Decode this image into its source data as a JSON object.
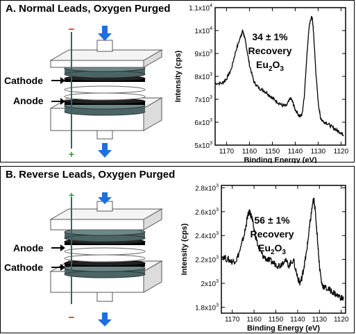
{
  "panels": [
    {
      "title": "A. Normal Leads, Oxygen Purged",
      "diagram": {
        "upper_label": "Cathode",
        "lower_label": "Anode",
        "top_sign": "−",
        "bottom_sign": "+",
        "top_sign_color": "#d03020",
        "bottom_sign_color": "#2e9a2e"
      },
      "annotation": {
        "line1": "34 ± 1%",
        "line2": "Recovery",
        "compound_main": "Eu",
        "compound_sub1": "2",
        "compound_mid": "O",
        "compound_sub2": "3"
      }
    },
    {
      "title": "B. Reverse Leads, Oxygen Purged",
      "diagram": {
        "upper_label": "Anode",
        "lower_label": "Cathode",
        "top_sign": "+",
        "bottom_sign": "−",
        "top_sign_color": "#2e9a2e",
        "bottom_sign_color": "#d03020"
      },
      "annotation": {
        "line1": "56 ± 1%",
        "line2": "Recovery",
        "compound_main": "Eu",
        "compound_sub1": "2",
        "compound_mid": "O",
        "compound_sub2": "3"
      }
    }
  ],
  "colors": {
    "plate_dark": "#4a6565",
    "electrode": "#000000",
    "arrow": "#1f6fe0",
    "housing": "#e8e8e8"
  },
  "icons": {
    "flow_in": "down-arrow-icon",
    "flow_out": "down-arrow-icon",
    "lead_in": "right-arrow-icon"
  },
  "chart_data": [
    {
      "type": "line",
      "xlabel": "Binding Energy (eV)",
      "ylabel": "Intensity (cps)",
      "xlim": [
        1175,
        1118
      ],
      "ylim": [
        5000,
        11000
      ],
      "x_reversed": true,
      "x_ticks": [
        1170,
        1160,
        1150,
        1140,
        1130,
        1120
      ],
      "x_tick_labels": [
        "1170",
        "1160",
        "1150",
        "1140",
        "1130",
        "1120"
      ],
      "y_ticks": [
        5000,
        6000,
        7000,
        8000,
        9000,
        10000,
        11000
      ],
      "y_tick_labels": [
        {
          "m": "5x10",
          "e": "3"
        },
        {
          "m": "6x10",
          "e": "3"
        },
        {
          "m": "7x10",
          "e": "3"
        },
        {
          "m": "8x10",
          "e": "3"
        },
        {
          "m": "9x10",
          "e": "3"
        },
        {
          "m": "1x10",
          "e": "4"
        },
        {
          "m": "1.1x10",
          "e": "4"
        }
      ],
      "series": [
        {
          "x": [
            1175,
            1172,
            1170,
            1168,
            1166,
            1164,
            1163,
            1162.5,
            1161.5,
            1160,
            1158,
            1156,
            1154,
            1152,
            1150,
            1148,
            1146,
            1144,
            1142,
            1141,
            1140,
            1138,
            1137,
            1136,
            1135,
            1134,
            1133,
            1132.5,
            1132,
            1131,
            1130,
            1129,
            1128,
            1126,
            1124,
            1122,
            1120,
            1119
          ],
          "y": [
            7700,
            7700,
            7900,
            8300,
            9100,
            9700,
            9980,
            9850,
            9400,
            8500,
            7750,
            7500,
            7400,
            7250,
            7050,
            6900,
            6750,
            6700,
            7050,
            6850,
            6550,
            6250,
            6350,
            7200,
            8800,
            10100,
            10600,
            10500,
            9900,
            8200,
            6900,
            6200,
            6050,
            5950,
            5800,
            5650,
            5550,
            5450
          ]
        }
      ]
    },
    {
      "type": "line",
      "xlabel": "Binding Energy (eV)",
      "ylabel": "Intensity (cps)",
      "xlim": [
        1175,
        1118
      ],
      "ylim": [
        1750,
        2820
      ],
      "x_reversed": true,
      "x_ticks": [
        1170,
        1160,
        1150,
        1140,
        1130,
        1120
      ],
      "x_tick_labels": [
        "1170",
        "1160",
        "1150",
        "1140",
        "1130",
        "1120"
      ],
      "y_ticks": [
        1800,
        2000,
        2200,
        2400,
        2600,
        2800
      ],
      "y_tick_labels": [
        {
          "m": "1.8x10",
          "e": "3"
        },
        {
          "m": "2x10",
          "e": "3"
        },
        {
          "m": "2.2x10",
          "e": "3"
        },
        {
          "m": "2.4x10",
          "e": "3"
        },
        {
          "m": "2.6x10",
          "e": "3"
        },
        {
          "m": "2.8x10",
          "e": "3"
        }
      ],
      "series": [
        {
          "x": [
            1175,
            1172,
            1170,
            1168,
            1166,
            1164,
            1163,
            1162,
            1161,
            1160,
            1158,
            1156,
            1154,
            1152,
            1150,
            1148,
            1146,
            1144,
            1142,
            1140,
            1139,
            1138,
            1137,
            1136,
            1135,
            1134,
            1133,
            1132.5,
            1132,
            1131,
            1130,
            1129,
            1128,
            1126,
            1124,
            1122,
            1120,
            1119
          ],
          "y": [
            2230,
            2200,
            2180,
            2200,
            2300,
            2450,
            2560,
            2600,
            2550,
            2450,
            2300,
            2230,
            2200,
            2180,
            2160,
            2150,
            2200,
            2150,
            2200,
            2050,
            2000,
            2050,
            2150,
            2250,
            2400,
            2550,
            2680,
            2700,
            2620,
            2400,
            2150,
            2000,
            1970,
            1950,
            1930,
            1900,
            1880,
            1870
          ]
        }
      ]
    }
  ]
}
